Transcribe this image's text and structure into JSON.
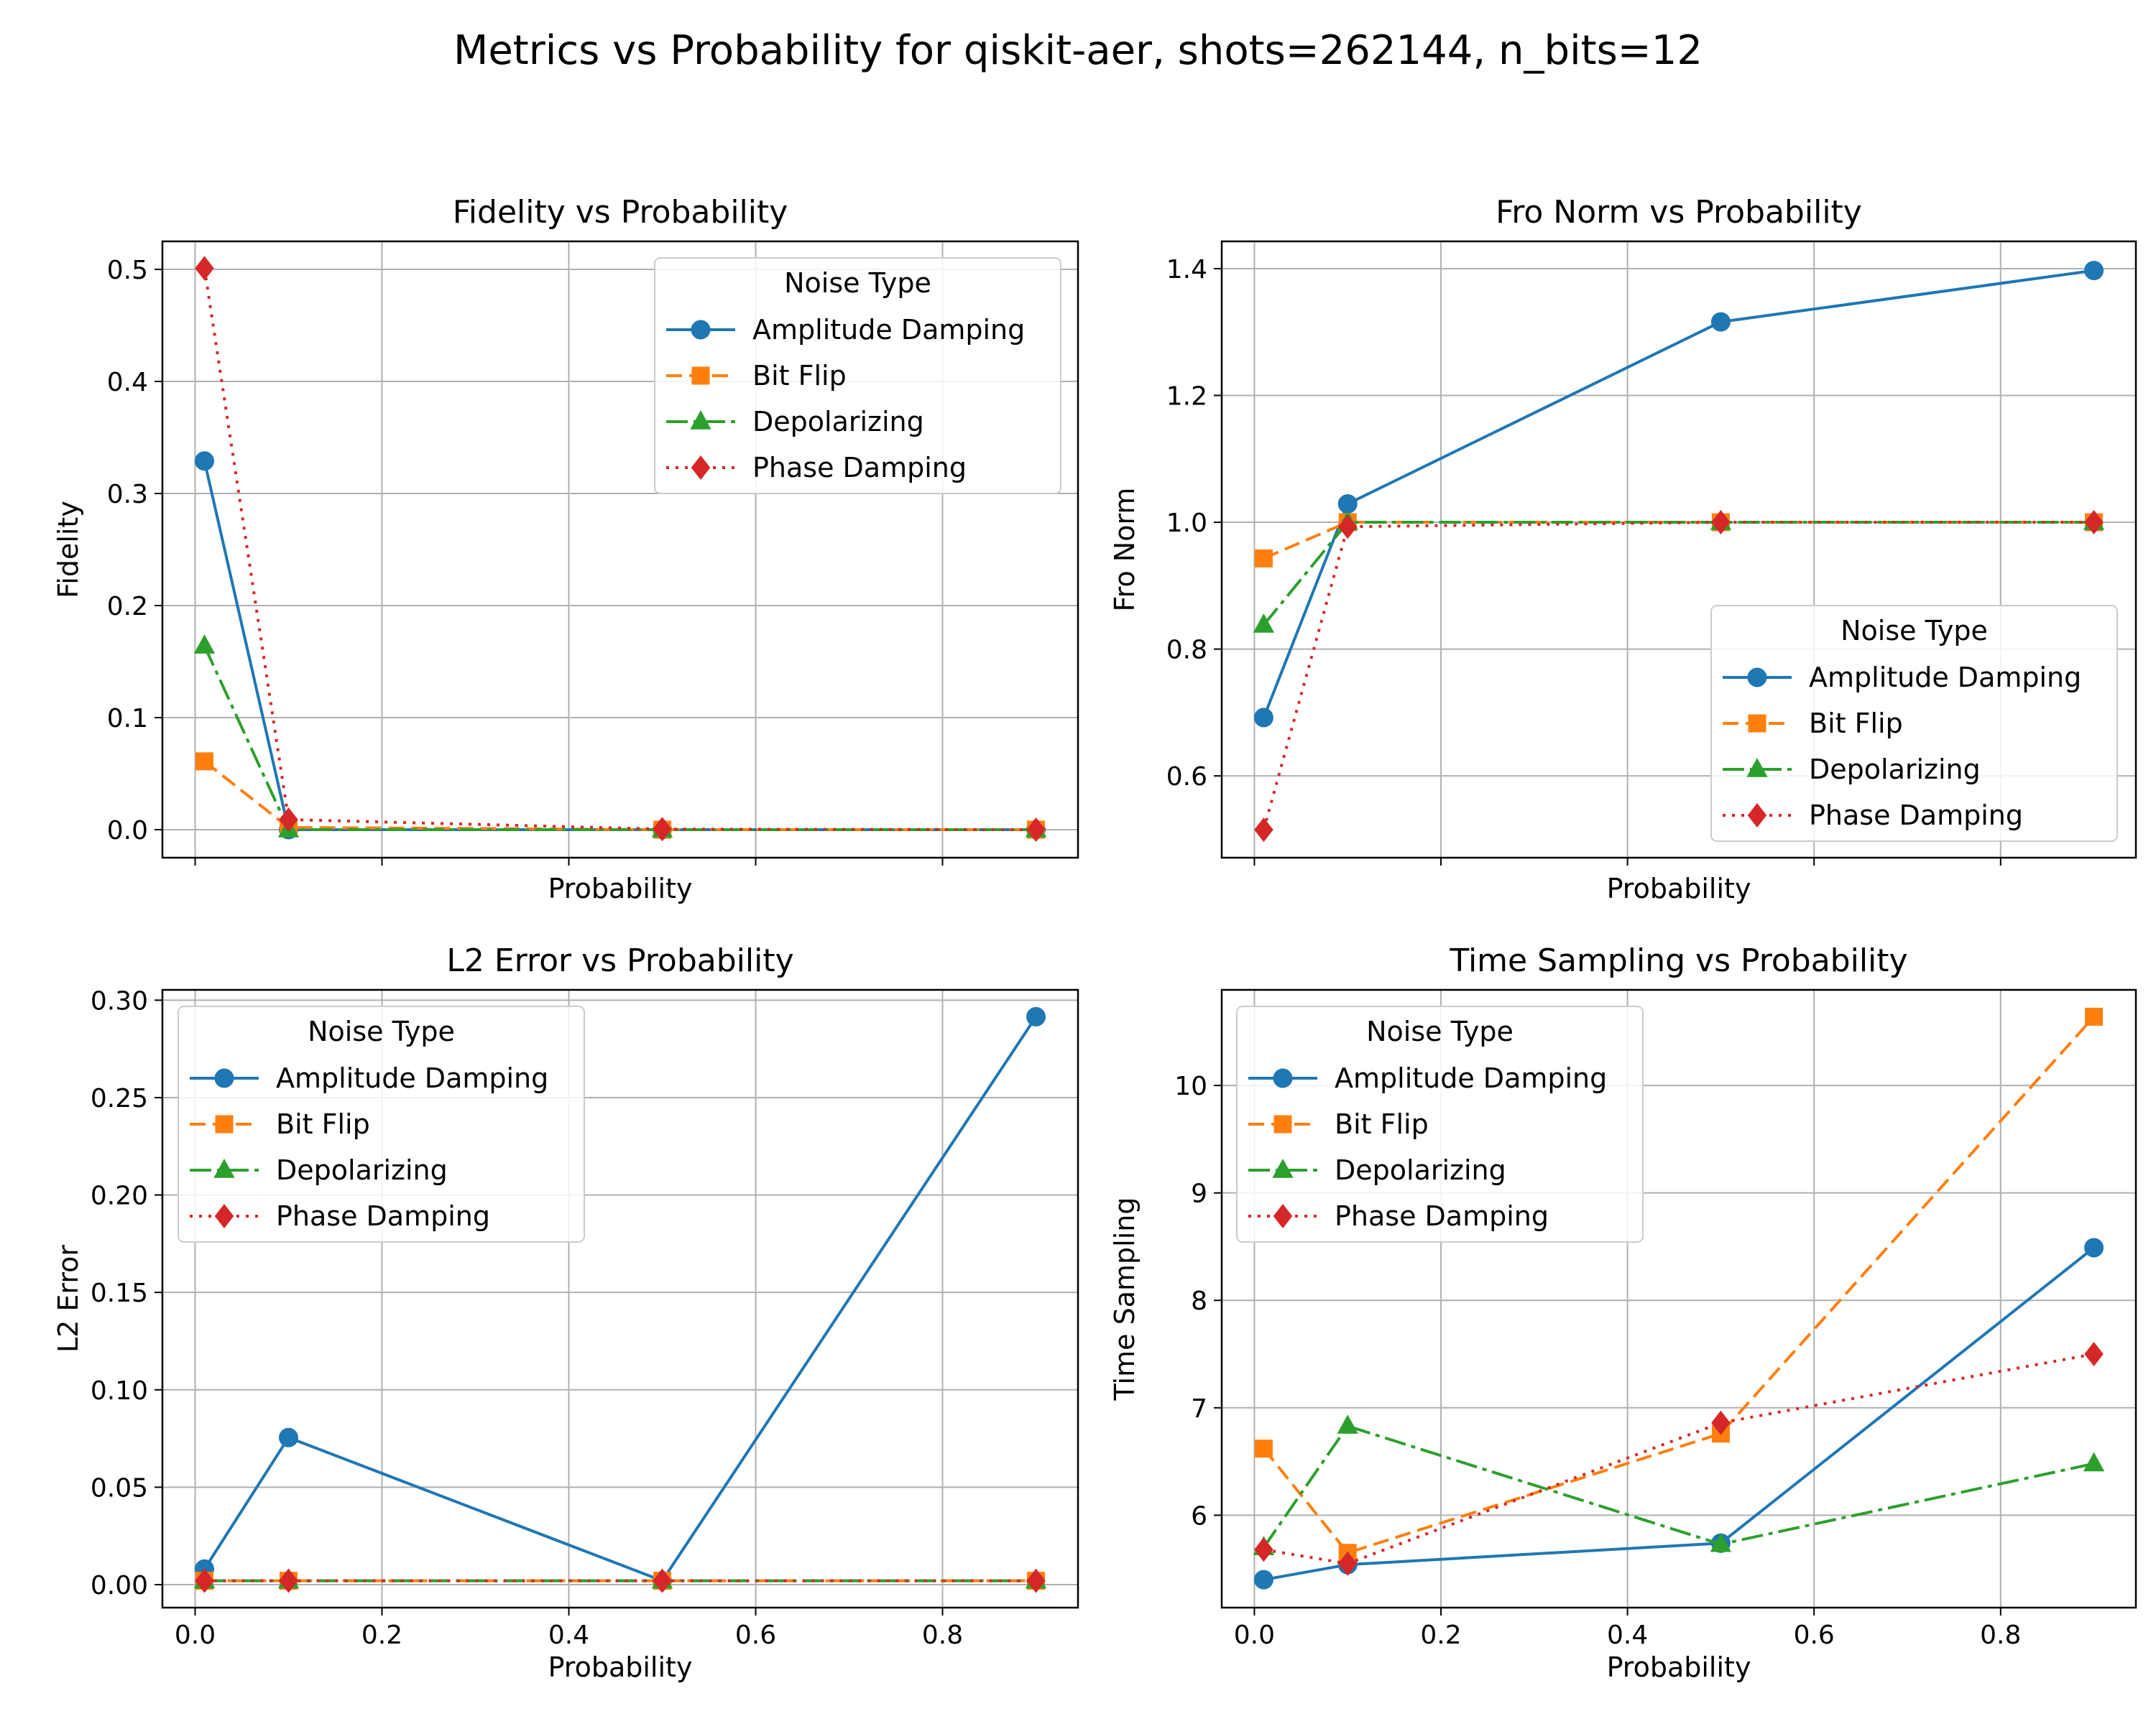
{
  "suptitle": "Metrics vs Probability for qiskit-aer, shots=262144, n_bits=12",
  "series_styles": [
    {
      "name": "Amplitude Damping",
      "color": "#1f77b4",
      "dash": "",
      "marker": "circle"
    },
    {
      "name": "Bit Flip",
      "color": "#ff7f0e",
      "dash": "22,10",
      "marker": "square"
    },
    {
      "name": "Depolarizing",
      "color": "#2ca02c",
      "dash": "30,8,6,8",
      "marker": "triangle"
    },
    {
      "name": "Phase Damping",
      "color": "#d62728",
      "dash": "4,9",
      "marker": "diamond"
    }
  ],
  "chart_data": [
    {
      "type": "line",
      "title": "Fidelity vs Probability",
      "xlabel": "Probability",
      "ylabel": "Fidelity",
      "x": [
        0.01,
        0.1,
        0.5,
        0.9
      ],
      "xlim": [
        -0.035,
        0.945
      ],
      "ylim": [
        -0.025,
        0.525
      ],
      "yticks": [
        0.0,
        0.1,
        0.2,
        0.3,
        0.4,
        0.5
      ],
      "ytick_labels": [
        "0.0",
        "0.1",
        "0.2",
        "0.3",
        "0.4",
        "0.5"
      ],
      "xticks": [
        0.0,
        0.2,
        0.4,
        0.6,
        0.8
      ],
      "xtick_labels": [],
      "grid": true,
      "legend": {
        "title": "Noise Type",
        "position": "upper right"
      },
      "series": [
        {
          "name": "Amplitude Damping",
          "values": [
            0.329,
            0.0,
            0.0,
            0.0
          ]
        },
        {
          "name": "Bit Flip",
          "values": [
            0.061,
            0.002,
            0.0,
            0.0
          ]
        },
        {
          "name": "Depolarizing",
          "values": [
            0.164,
            0.0,
            0.0,
            0.0
          ]
        },
        {
          "name": "Phase Damping",
          "values": [
            0.501,
            0.009,
            0.0005,
            0.0
          ]
        }
      ]
    },
    {
      "type": "line",
      "title": "Fro Norm vs Probability",
      "xlabel": "Probability",
      "ylabel": "Fro Norm",
      "x": [
        0.01,
        0.1,
        0.5,
        0.9
      ],
      "xlim": [
        -0.035,
        0.945
      ],
      "ylim": [
        0.471,
        1.443
      ],
      "yticks": [
        0.6,
        0.8,
        1.0,
        1.2,
        1.4
      ],
      "ytick_labels": [
        "0.6",
        "0.8",
        "1.0",
        "1.2",
        "1.4"
      ],
      "xticks": [
        0.0,
        0.2,
        0.4,
        0.6,
        0.8
      ],
      "xtick_labels": [],
      "grid": true,
      "legend": {
        "title": "Noise Type",
        "position": "lower right"
      },
      "series": [
        {
          "name": "Amplitude Damping",
          "values": [
            0.692,
            1.029,
            1.316,
            1.397
          ]
        },
        {
          "name": "Bit Flip",
          "values": [
            0.943,
            1.0,
            1.0,
            1.0
          ]
        },
        {
          "name": "Depolarizing",
          "values": [
            0.838,
            1.0,
            1.0,
            1.0
          ]
        },
        {
          "name": "Phase Damping",
          "values": [
            0.515,
            0.993,
            1.0,
            1.0
          ]
        }
      ]
    },
    {
      "type": "line",
      "title": "L2 Error vs Probability",
      "xlabel": "Probability",
      "ylabel": "L2 Error",
      "x": [
        0.01,
        0.1,
        0.5,
        0.9
      ],
      "xlim": [
        -0.035,
        0.945
      ],
      "ylim": [
        -0.0118,
        0.3053
      ],
      "yticks": [
        0.0,
        0.05,
        0.1,
        0.15,
        0.2,
        0.25,
        0.3
      ],
      "ytick_labels": [
        "0.00",
        "0.05",
        "0.10",
        "0.15",
        "0.20",
        "0.25",
        "0.30"
      ],
      "xticks": [
        0.0,
        0.2,
        0.4,
        0.6,
        0.8
      ],
      "xtick_labels": [
        "0.0",
        "0.2",
        "0.4",
        "0.6",
        "0.8"
      ],
      "grid": true,
      "legend": {
        "title": "Noise Type",
        "position": "upper left"
      },
      "series": [
        {
          "name": "Amplitude Damping",
          "values": [
            0.008,
            0.0755,
            0.002,
            0.2915
          ]
        },
        {
          "name": "Bit Flip",
          "values": [
            0.002,
            0.002,
            0.002,
            0.002
          ]
        },
        {
          "name": "Depolarizing",
          "values": [
            0.002,
            0.002,
            0.002,
            0.002
          ]
        },
        {
          "name": "Phase Damping",
          "values": [
            0.002,
            0.002,
            0.002,
            0.002
          ]
        }
      ]
    },
    {
      "type": "line",
      "title": "Time Sampling vs Probability",
      "xlabel": "Probability",
      "ylabel": "Time Sampling",
      "x": [
        0.01,
        0.1,
        0.5,
        0.9
      ],
      "xlim": [
        -0.035,
        0.945
      ],
      "ylim": [
        5.14,
        10.89
      ],
      "yticks": [
        6,
        7,
        8,
        9,
        10
      ],
      "ytick_labels": [
        "6",
        "7",
        "8",
        "9",
        "10"
      ],
      "xticks": [
        0.0,
        0.2,
        0.4,
        0.6,
        0.8
      ],
      "xtick_labels": [
        "0.0",
        "0.2",
        "0.4",
        "0.6",
        "0.8"
      ],
      "grid": true,
      "legend": {
        "title": "Noise Type",
        "position": "upper left"
      },
      "series": [
        {
          "name": "Amplitude Damping",
          "values": [
            5.4,
            5.54,
            5.74,
            8.49
          ]
        },
        {
          "name": "Bit Flip",
          "values": [
            6.62,
            5.65,
            6.76,
            10.64
          ]
        },
        {
          "name": "Depolarizing",
          "values": [
            5.7,
            6.83,
            5.73,
            6.48
          ]
        },
        {
          "name": "Phase Damping",
          "values": [
            5.68,
            5.55,
            6.86,
            7.5
          ]
        }
      ]
    }
  ]
}
